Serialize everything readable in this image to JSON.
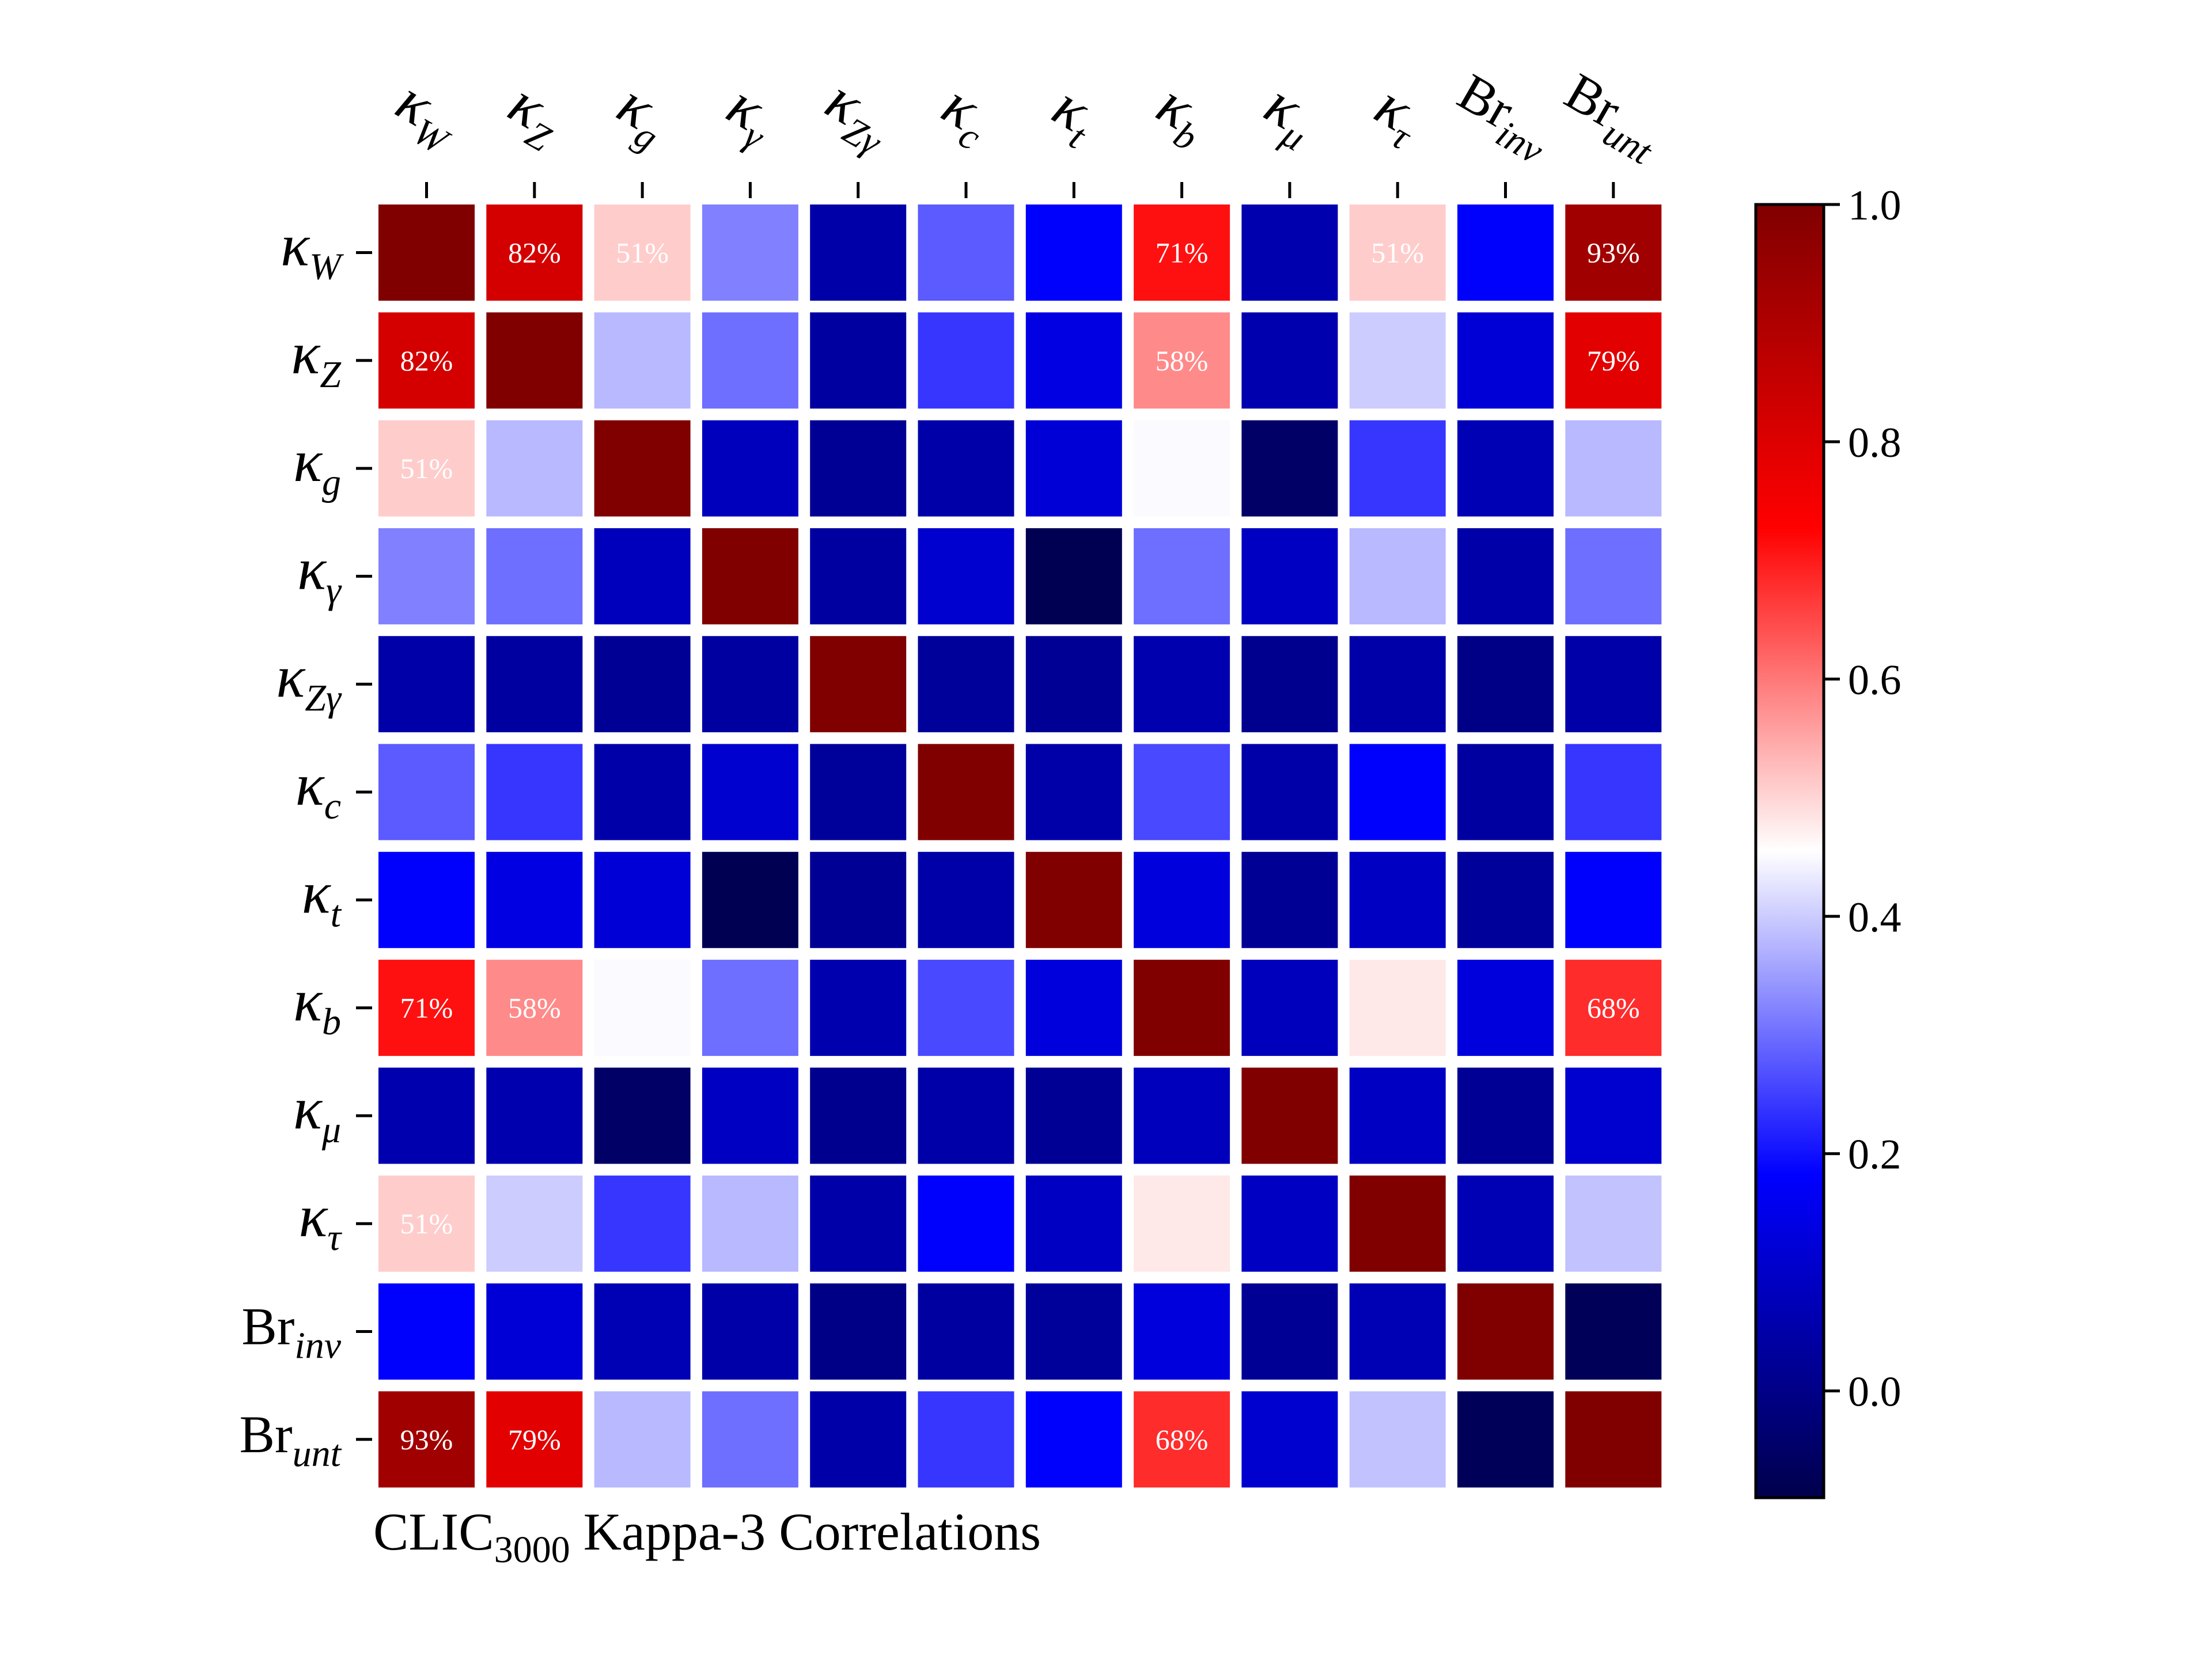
{
  "chart_data": {
    "type": "heatmap",
    "title": {
      "prefix": "CLIC",
      "subscript": "3000",
      "suffix": " Kappa-3 Correlations"
    },
    "labels": [
      {
        "base": "κ",
        "sub": "W"
      },
      {
        "base": "κ",
        "sub": "Z"
      },
      {
        "base": "κ",
        "sub": "g"
      },
      {
        "base": "κ",
        "sub": "γ"
      },
      {
        "base": "κ",
        "sub": "Zγ"
      },
      {
        "base": "κ",
        "sub": "c"
      },
      {
        "base": "κ",
        "sub": "t"
      },
      {
        "base": "κ",
        "sub": "b"
      },
      {
        "base": "κ",
        "sub": "μ"
      },
      {
        "base": "κ",
        "sub": "τ"
      },
      {
        "base": "Br",
        "sub": "inv"
      },
      {
        "base": "Br",
        "sub": "unt"
      }
    ],
    "matrix": [
      [
        1.0,
        0.82,
        0.51,
        0.32,
        0.05,
        0.28,
        0.18,
        0.71,
        0.06,
        0.51,
        0.18,
        0.93
      ],
      [
        0.82,
        1.0,
        0.38,
        0.3,
        0.04,
        0.24,
        0.14,
        0.58,
        0.06,
        0.4,
        0.12,
        0.79
      ],
      [
        0.51,
        0.38,
        1.0,
        0.08,
        0.02,
        0.05,
        0.12,
        0.45,
        -0.05,
        0.24,
        0.07,
        0.38
      ],
      [
        0.32,
        0.3,
        0.08,
        1.0,
        0.04,
        0.11,
        -0.08,
        0.3,
        0.09,
        0.38,
        0.05,
        0.3
      ],
      [
        0.05,
        0.04,
        0.02,
        0.04,
        1.0,
        0.03,
        0.02,
        0.06,
        0.01,
        0.05,
        0.0,
        0.05
      ],
      [
        0.28,
        0.24,
        0.05,
        0.11,
        0.03,
        1.0,
        0.05,
        0.26,
        0.05,
        0.18,
        0.04,
        0.24
      ],
      [
        0.18,
        0.14,
        0.12,
        -0.08,
        0.02,
        0.05,
        1.0,
        0.13,
        0.02,
        0.09,
        0.03,
        0.18
      ],
      [
        0.71,
        0.58,
        0.45,
        0.3,
        0.06,
        0.26,
        0.13,
        1.0,
        0.08,
        0.48,
        0.13,
        0.68
      ],
      [
        0.06,
        0.06,
        -0.05,
        0.09,
        0.01,
        0.05,
        0.02,
        0.08,
        1.0,
        0.09,
        0.02,
        0.11
      ],
      [
        0.51,
        0.4,
        0.24,
        0.38,
        0.05,
        0.18,
        0.09,
        0.48,
        0.09,
        1.0,
        0.07,
        0.39
      ],
      [
        0.18,
        0.12,
        0.07,
        0.05,
        0.0,
        0.04,
        0.03,
        0.13,
        0.02,
        0.07,
        1.0,
        -0.07
      ],
      [
        0.93,
        0.79,
        0.38,
        0.3,
        0.05,
        0.24,
        0.18,
        0.68,
        0.11,
        0.39,
        -0.07,
        1.0
      ]
    ],
    "annotated_cells": [
      {
        "row": 0,
        "col": 1,
        "text": "82%"
      },
      {
        "row": 0,
        "col": 2,
        "text": "51%"
      },
      {
        "row": 0,
        "col": 7,
        "text": "71%"
      },
      {
        "row": 0,
        "col": 9,
        "text": "51%"
      },
      {
        "row": 0,
        "col": 11,
        "text": "93%"
      },
      {
        "row": 1,
        "col": 0,
        "text": "82%"
      },
      {
        "row": 1,
        "col": 7,
        "text": "58%"
      },
      {
        "row": 1,
        "col": 11,
        "text": "79%"
      },
      {
        "row": 2,
        "col": 0,
        "text": "51%"
      },
      {
        "row": 7,
        "col": 0,
        "text": "71%"
      },
      {
        "row": 7,
        "col": 1,
        "text": "58%"
      },
      {
        "row": 7,
        "col": 11,
        "text": "68%"
      },
      {
        "row": 9,
        "col": 0,
        "text": "51%"
      },
      {
        "row": 11,
        "col": 0,
        "text": "93%"
      },
      {
        "row": 11,
        "col": 1,
        "text": "79%"
      },
      {
        "row": 11,
        "col": 7,
        "text": "68%"
      }
    ],
    "colorbar": {
      "min": -0.09,
      "max": 1.0,
      "ticks": [
        "0.0",
        "0.2",
        "0.4",
        "0.6",
        "0.8",
        "1.0"
      ],
      "tick_values": [
        0.0,
        0.2,
        0.4,
        0.6,
        0.8,
        1.0
      ]
    },
    "colormap": "seismic",
    "colors": {
      "dark_blue": "#00004c",
      "blue": "#0000ff",
      "white": "#ffffff",
      "red": "#ff0000",
      "dark_red": "#800000"
    },
    "grid": false,
    "legend": "colorbar-right"
  }
}
